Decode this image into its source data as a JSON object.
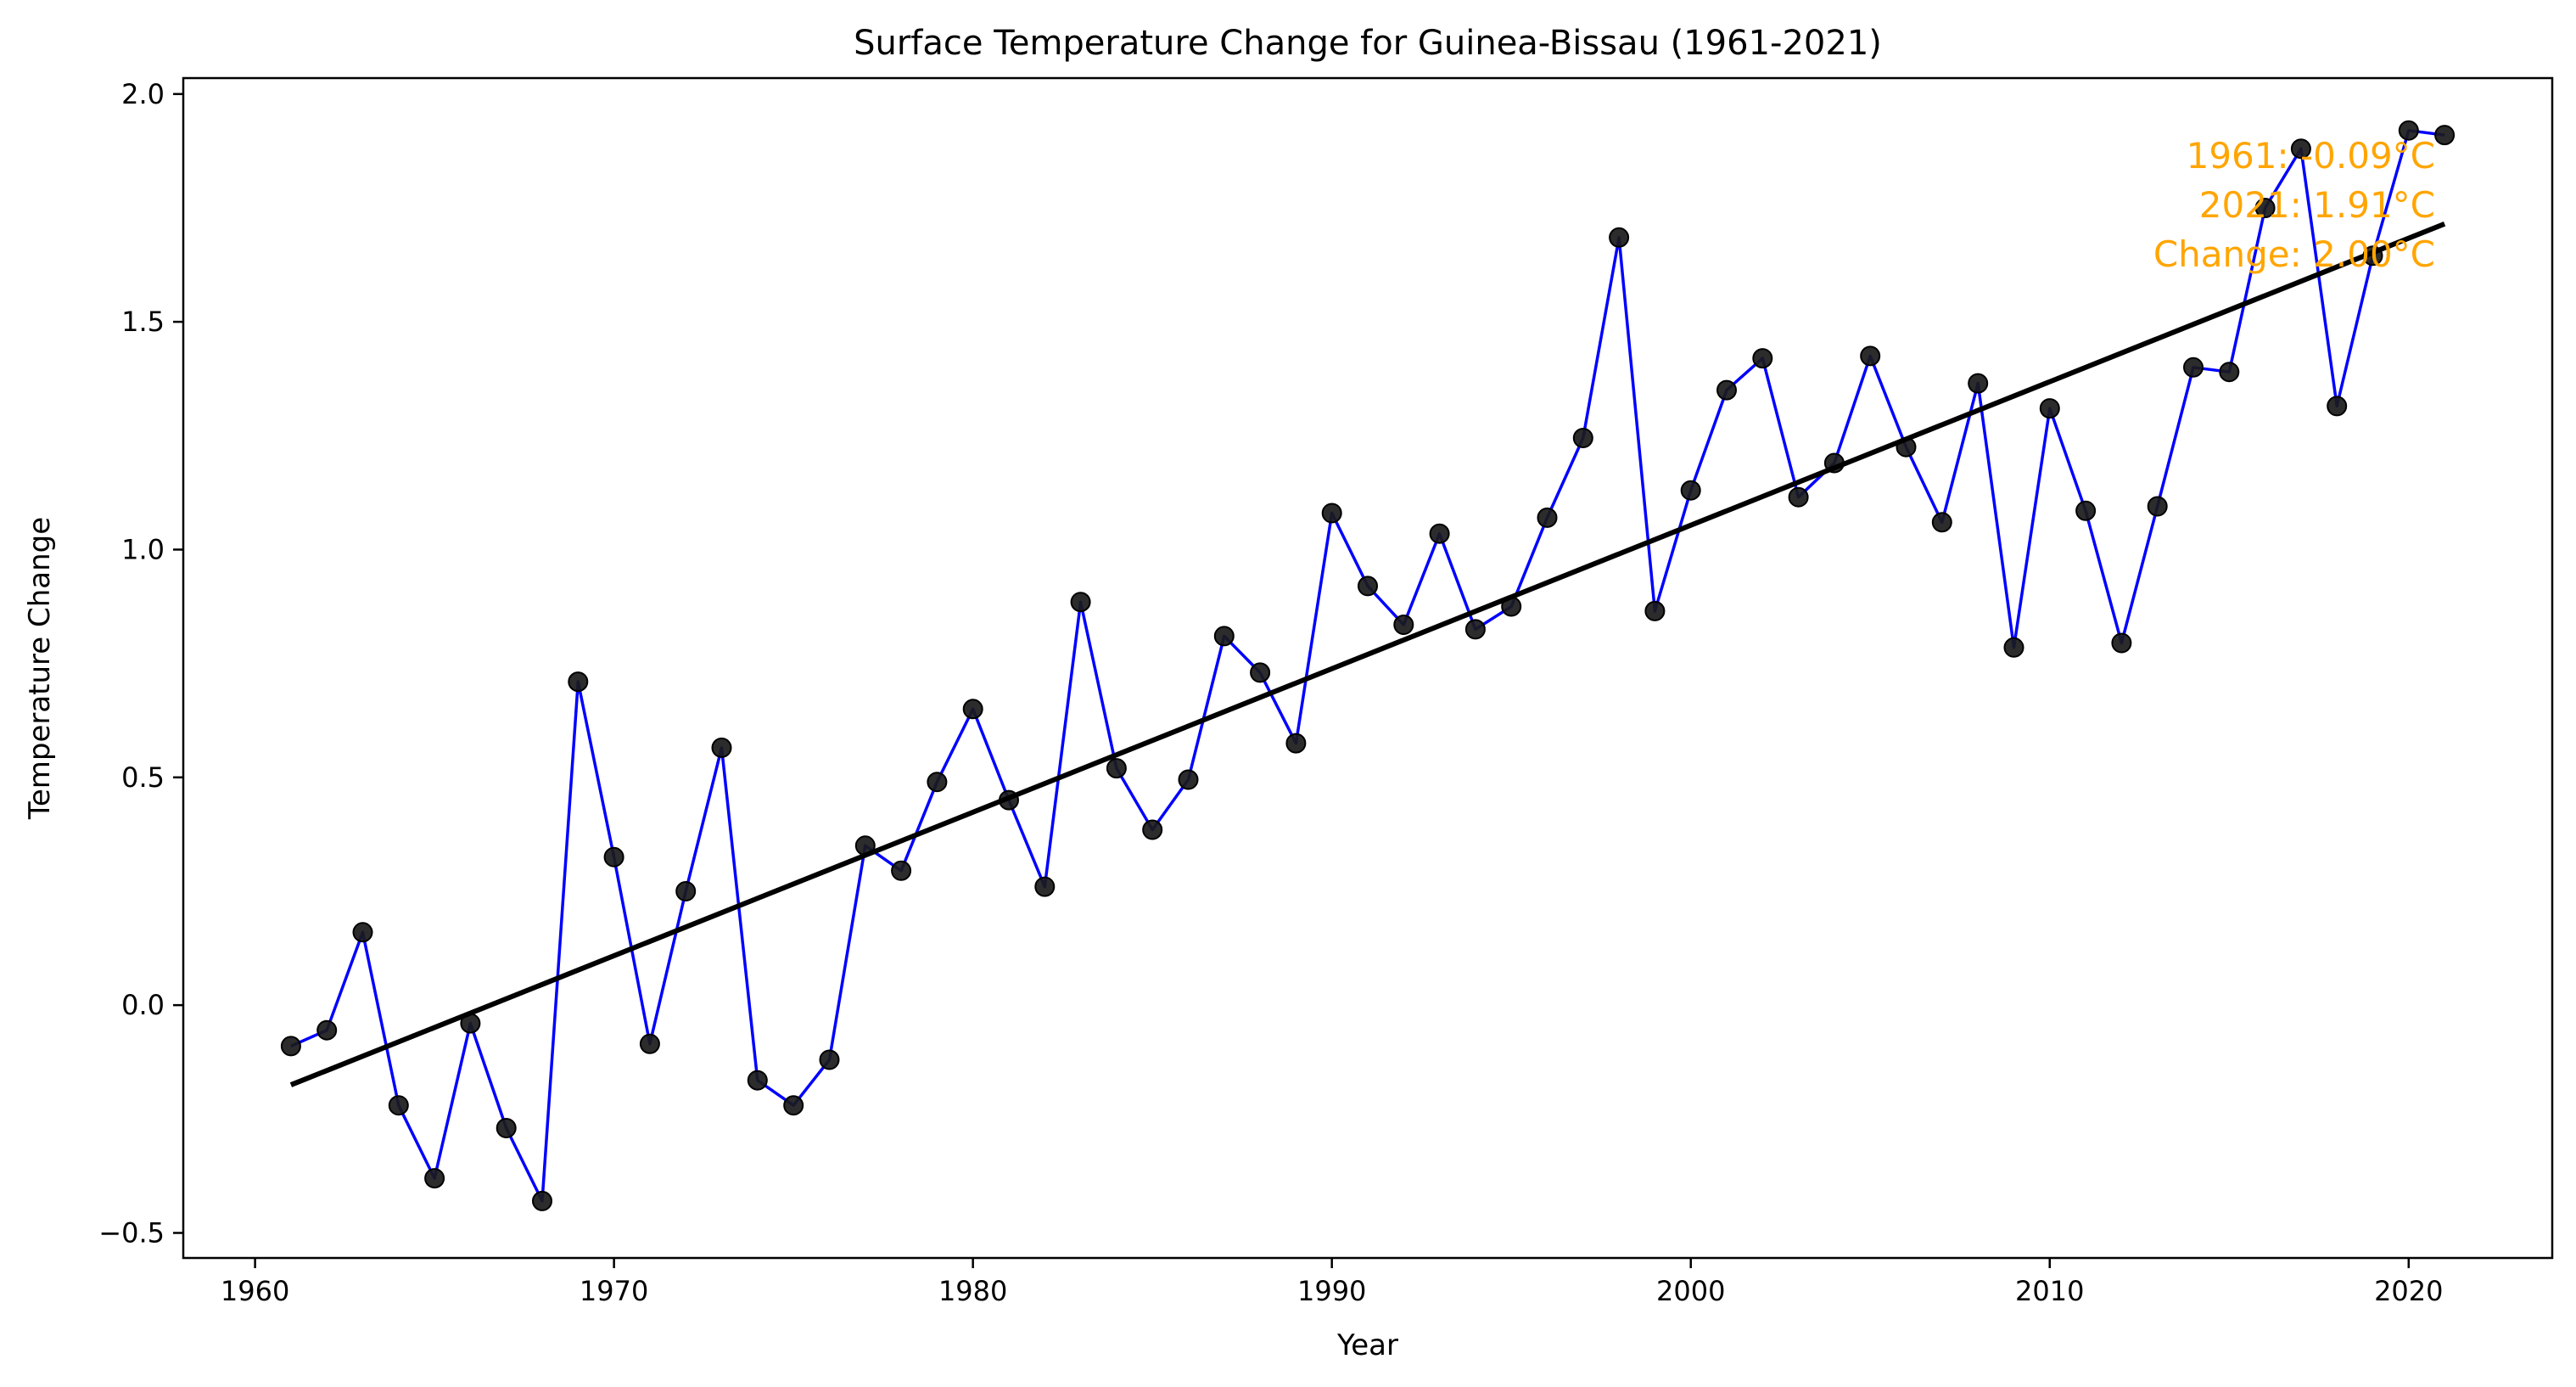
{
  "chart_data": {
    "type": "line",
    "title": "Surface Temperature Change for Guinea-Bissau (1961-2021)",
    "xlabel": "Year",
    "ylabel": "Temperature Change",
    "xlim": [
      1958.0,
      2024.0
    ],
    "ylim": [
      -0.555,
      2.035
    ],
    "x_ticks": [
      1960,
      1970,
      1980,
      1990,
      2000,
      2010,
      2020
    ],
    "y_ticks": [
      -0.5,
      0.0,
      0.5,
      1.0,
      1.5,
      2.0
    ],
    "y_tick_labels": [
      "−0.5",
      "0.0",
      "0.5",
      "1.0",
      "1.5",
      "2.0"
    ],
    "grid": false,
    "series": [
      {
        "x": [
          1961,
          1962,
          1963,
          1964,
          1965,
          1966,
          1967,
          1968,
          1969,
          1970,
          1971,
          1972,
          1973,
          1974,
          1975,
          1976,
          1977,
          1978,
          1979,
          1980,
          1981,
          1982,
          1983,
          1984,
          1985,
          1986,
          1987,
          1988,
          1989,
          1990,
          1991,
          1992,
          1993,
          1994,
          1995,
          1996,
          1997,
          1998,
          1999,
          2000,
          2001,
          2002,
          2003,
          2004,
          2005,
          2006,
          2007,
          2008,
          2009,
          2010,
          2011,
          2012,
          2013,
          2014,
          2015,
          2016,
          2017,
          2018,
          2019,
          2020,
          2021
        ],
        "values": [
          -0.09,
          -0.055,
          0.16,
          -0.22,
          -0.38,
          -0.04,
          -0.27,
          -0.43,
          0.71,
          0.325,
          -0.085,
          0.25,
          0.565,
          -0.165,
          -0.22,
          -0.12,
          0.35,
          0.295,
          0.49,
          0.65,
          0.45,
          0.26,
          0.885,
          0.52,
          0.385,
          0.495,
          0.81,
          0.73,
          0.575,
          1.08,
          0.92,
          0.835,
          1.035,
          0.825,
          0.875,
          1.07,
          1.245,
          1.685,
          0.865,
          1.13,
          1.35,
          1.42,
          1.115,
          1.19,
          1.425,
          1.225,
          1.06,
          1.365,
          0.785,
          1.31,
          1.085,
          0.795,
          1.095,
          1.4,
          1.39,
          1.75,
          1.88,
          1.315,
          1.645,
          1.92,
          1.91
        ],
        "line_color": "#0000FF",
        "marker_color": "#1a1a1a"
      }
    ],
    "trendline": {
      "x": [
        1961,
        2021
      ],
      "values": [
        -0.175,
        1.715
      ],
      "color": "#000000"
    },
    "annotation": {
      "lines": [
        "1961: -0.09°C",
        "2021: 1.91°C",
        "Change: 2.00°C"
      ],
      "color": "#FFA500"
    }
  }
}
